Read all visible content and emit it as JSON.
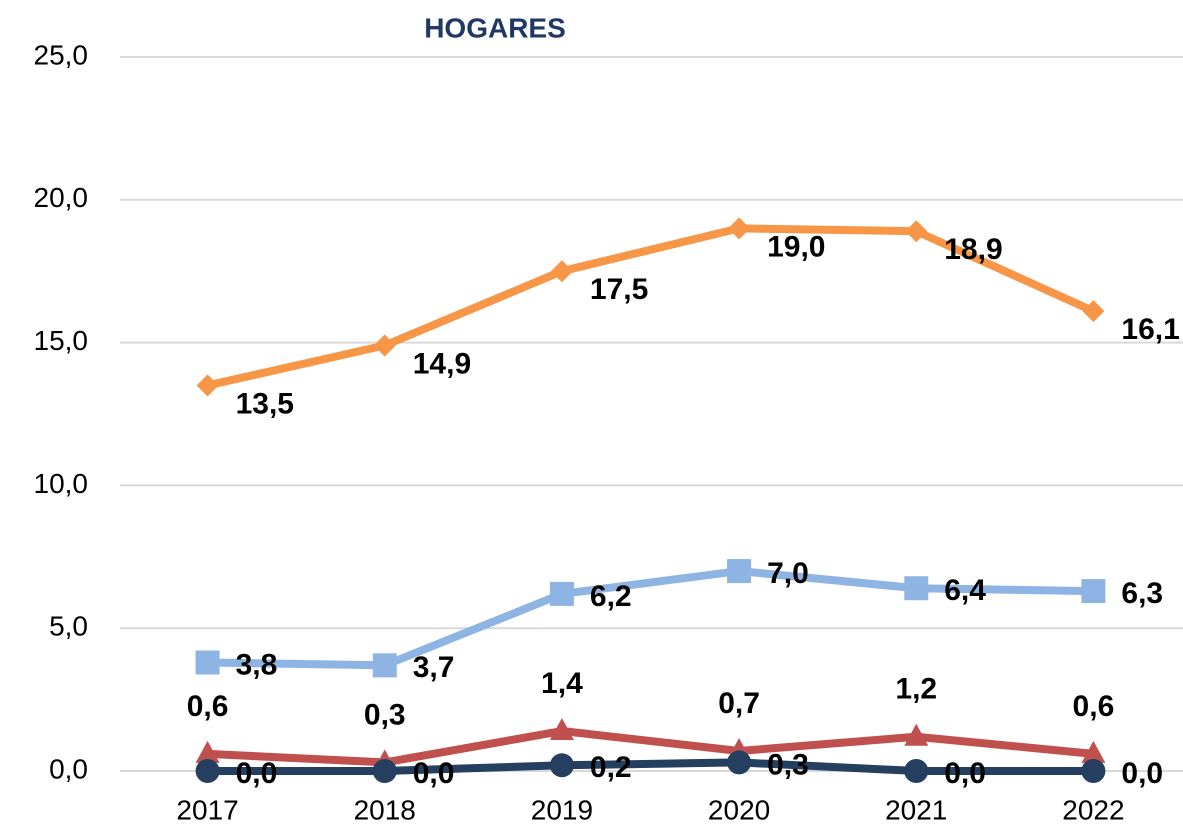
{
  "chart_data": {
    "type": "line",
    "title": "HOGARES",
    "categories": [
      "2017",
      "2018",
      "2019",
      "2020",
      "2021",
      "2022"
    ],
    "ylim": [
      0,
      25
    ],
    "yticks": [
      {
        "value": 0,
        "label": "0,0"
      },
      {
        "value": 5,
        "label": "5,0"
      },
      {
        "value": 10,
        "label": "10,0"
      },
      {
        "value": 15,
        "label": "15,0"
      },
      {
        "value": 20,
        "label": "20,0"
      },
      {
        "value": 25,
        "label": "25,0"
      }
    ],
    "grid": true,
    "series": [
      {
        "color": "#f79646",
        "marker": "diamond",
        "label_position": "below-right",
        "values": [
          13.5,
          14.9,
          17.5,
          19.0,
          18.9,
          16.1
        ],
        "value_labels": [
          "13,5",
          "14,9",
          "17,5",
          "19,0",
          "18,9",
          "16,1"
        ]
      },
      {
        "color": "#8eb4e3",
        "marker": "square",
        "label_position": "right",
        "values": [
          3.8,
          3.7,
          6.2,
          7.0,
          6.4,
          6.3
        ],
        "value_labels": [
          "3,8",
          "3,7",
          "6,2",
          "7,0",
          "6,4",
          "6,3"
        ]
      },
      {
        "color": "#c0504d",
        "marker": "triangle",
        "label_position": "above",
        "values": [
          0.6,
          0.3,
          1.4,
          0.7,
          1.2,
          0.6
        ],
        "value_labels": [
          "0,6",
          "0,3",
          "1,4",
          "0,7",
          "1,2",
          "0,6"
        ]
      },
      {
        "color": "#243f60",
        "marker": "circle",
        "label_position": "right",
        "values": [
          0.0,
          0.0,
          0.2,
          0.3,
          0.0,
          0.0
        ],
        "value_labels": [
          "0,0",
          "0,0",
          "0,2",
          "0,3",
          "0,0",
          "0,0"
        ]
      }
    ]
  }
}
